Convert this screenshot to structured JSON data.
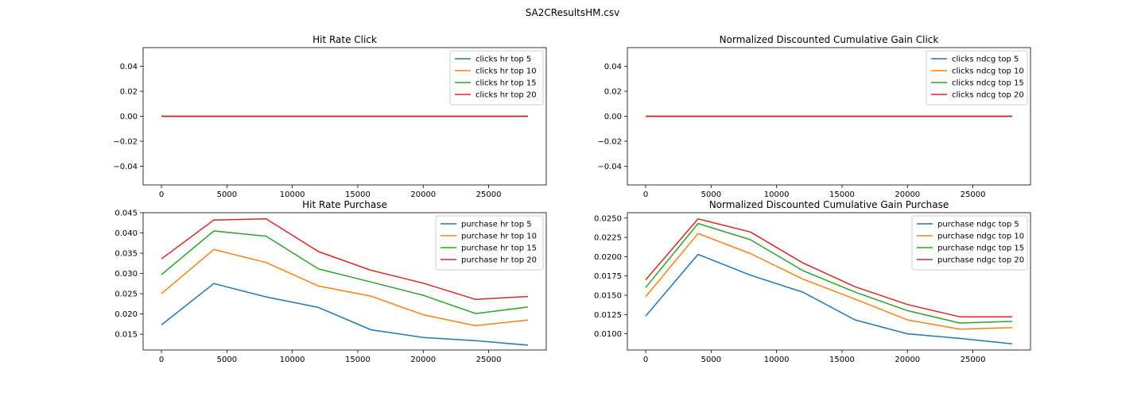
{
  "figure": {
    "suptitle": "SA2CResultsHM.csv"
  },
  "colors": [
    "#1f77b4",
    "#ff7f0e",
    "#2ca02c",
    "#d62728"
  ],
  "chart_data": [
    {
      "type": "line",
      "title": "Hit Rate Click",
      "legend_position": "top-right",
      "x": [
        0,
        4000,
        8000,
        12000,
        16000,
        20000,
        24000,
        28000
      ],
      "xlim": [
        -1400,
        29400
      ],
      "xticks": [
        0,
        5000,
        10000,
        15000,
        20000,
        25000
      ],
      "xtick_labels": [
        "0",
        "5000",
        "10000",
        "15000",
        "20000",
        "25000"
      ],
      "ylim": [
        -0.055,
        0.055
      ],
      "yticks": [
        -0.04,
        -0.02,
        0.0,
        0.02,
        0.04
      ],
      "ytick_labels": [
        "−0.04",
        "−0.02",
        "0.00",
        "0.02",
        "0.04"
      ],
      "series": [
        {
          "name": "clicks hr top 5",
          "values": [
            0,
            0,
            0,
            0,
            0,
            0,
            0,
            0
          ]
        },
        {
          "name": "clicks hr top 10",
          "values": [
            0,
            0,
            0,
            0,
            0,
            0,
            0,
            0
          ]
        },
        {
          "name": "clicks hr top 15",
          "values": [
            0,
            0,
            0,
            0,
            0,
            0,
            0,
            0
          ]
        },
        {
          "name": "clicks hr top 20",
          "values": [
            0,
            0,
            0,
            0,
            0,
            0,
            0,
            0
          ]
        }
      ]
    },
    {
      "type": "line",
      "title": "Normalized Discounted Cumulative Gain Click",
      "legend_position": "top-right",
      "x": [
        0,
        4000,
        8000,
        12000,
        16000,
        20000,
        24000,
        28000
      ],
      "xlim": [
        -1400,
        29400
      ],
      "xticks": [
        0,
        5000,
        10000,
        15000,
        20000,
        25000
      ],
      "xtick_labels": [
        "0",
        "5000",
        "10000",
        "15000",
        "20000",
        "25000"
      ],
      "ylim": [
        -0.055,
        0.055
      ],
      "yticks": [
        -0.04,
        -0.02,
        0.0,
        0.02,
        0.04
      ],
      "ytick_labels": [
        "−0.04",
        "−0.02",
        "0.00",
        "0.02",
        "0.04"
      ],
      "series": [
        {
          "name": "clicks ndcg top 5",
          "values": [
            0,
            0,
            0,
            0,
            0,
            0,
            0,
            0
          ]
        },
        {
          "name": "clicks ndcg top 10",
          "values": [
            0,
            0,
            0,
            0,
            0,
            0,
            0,
            0
          ]
        },
        {
          "name": "clicks ndcg top 15",
          "values": [
            0,
            0,
            0,
            0,
            0,
            0,
            0,
            0
          ]
        },
        {
          "name": "clicks ndcg top 20",
          "values": [
            0,
            0,
            0,
            0,
            0,
            0,
            0,
            0
          ]
        }
      ]
    },
    {
      "type": "line",
      "title": "Hit Rate Purchase",
      "legend_position": "top-right",
      "x": [
        0,
        4000,
        8000,
        12000,
        16000,
        20000,
        24000,
        28000
      ],
      "xlim": [
        -1400,
        29400
      ],
      "xticks": [
        0,
        5000,
        10000,
        15000,
        20000,
        25000
      ],
      "xtick_labels": [
        "0",
        "5000",
        "10000",
        "15000",
        "20000",
        "25000"
      ],
      "ylim": [
        0.0111,
        0.045
      ],
      "yticks": [
        0.015,
        0.02,
        0.025,
        0.03,
        0.035,
        0.04,
        0.045
      ],
      "ytick_labels": [
        "0.015",
        "0.020",
        "0.025",
        "0.030",
        "0.035",
        "0.040",
        "0.045"
      ],
      "series": [
        {
          "name": "purchase hr top 5",
          "values": [
            0.0173,
            0.0275,
            0.0242,
            0.0216,
            0.0161,
            0.0142,
            0.0134,
            0.0123
          ]
        },
        {
          "name": "purchase hr top 10",
          "values": [
            0.025,
            0.0359,
            0.0327,
            0.0269,
            0.0244,
            0.0198,
            0.0171,
            0.0185
          ]
        },
        {
          "name": "purchase hr top 15",
          "values": [
            0.0297,
            0.0405,
            0.0392,
            0.0311,
            0.0279,
            0.0246,
            0.0201,
            0.0217
          ]
        },
        {
          "name": "purchase hr top 20",
          "values": [
            0.0336,
            0.0432,
            0.0435,
            0.0354,
            0.0308,
            0.0276,
            0.0236,
            0.0243
          ]
        }
      ]
    },
    {
      "type": "line",
      "title": "Normalized Discounted Cumulative Gain Purchase",
      "legend_position": "top-right",
      "x": [
        0,
        4000,
        8000,
        12000,
        16000,
        20000,
        24000,
        28000
      ],
      "xlim": [
        -1400,
        29400
      ],
      "xticks": [
        0,
        5000,
        10000,
        15000,
        20000,
        25000
      ],
      "xtick_labels": [
        "0",
        "5000",
        "10000",
        "15000",
        "20000",
        "25000"
      ],
      "ylim": [
        0.0079,
        0.0257
      ],
      "yticks": [
        0.01,
        0.0125,
        0.015,
        0.0175,
        0.02,
        0.0225,
        0.025
      ],
      "ytick_labels": [
        "0.0100",
        "0.0125",
        "0.0150",
        "0.0175",
        "0.0200",
        "0.0225",
        "0.0250"
      ],
      "series": [
        {
          "name": "purchase ndgc top 5",
          "values": [
            0.0123,
            0.0203,
            0.0176,
            0.0154,
            0.0118,
            0.01,
            0.0094,
            0.0087
          ]
        },
        {
          "name": "purchase ndgc top 10",
          "values": [
            0.0148,
            0.023,
            0.0204,
            0.0171,
            0.0145,
            0.0118,
            0.0106,
            0.0108
          ]
        },
        {
          "name": "purchase ndgc top 15",
          "values": [
            0.016,
            0.0243,
            0.0222,
            0.0182,
            0.0154,
            0.013,
            0.0114,
            0.0116
          ]
        },
        {
          "name": "purchase ndgc top 20",
          "values": [
            0.017,
            0.0249,
            0.0232,
            0.0192,
            0.0161,
            0.0138,
            0.0122,
            0.0122
          ]
        }
      ]
    }
  ]
}
